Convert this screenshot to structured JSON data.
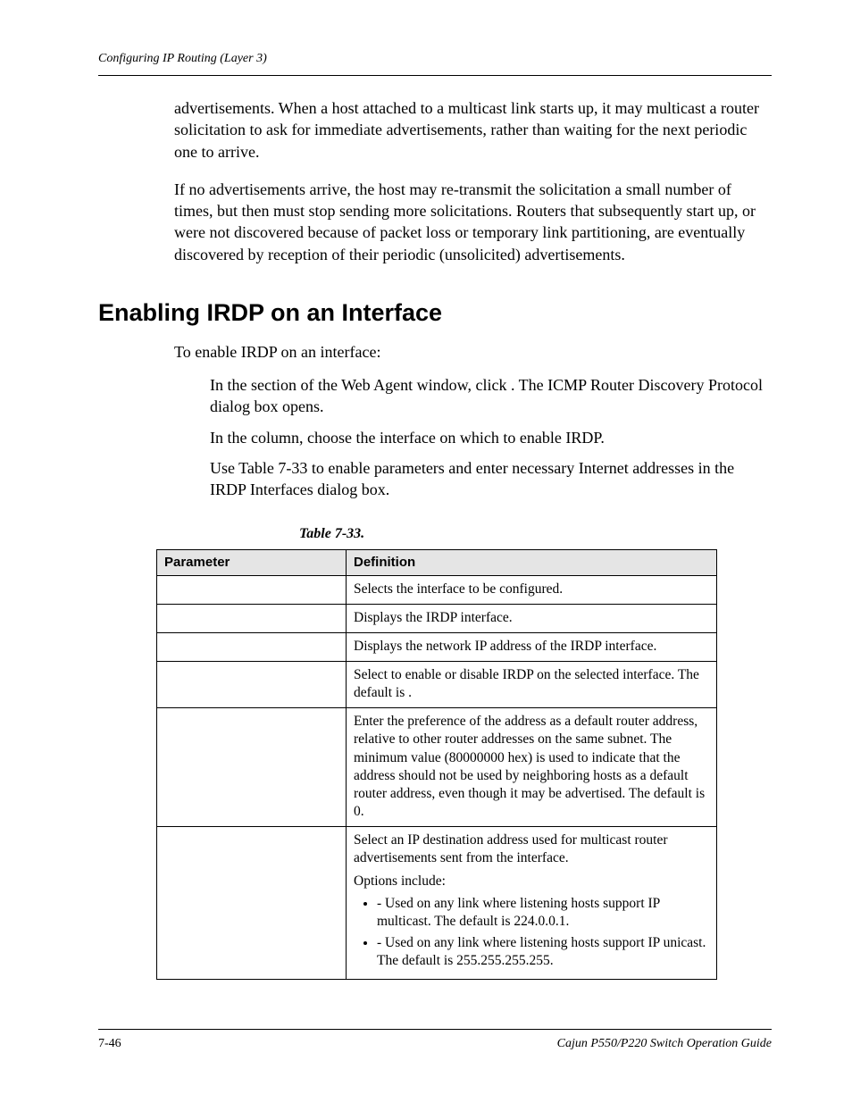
{
  "header": {
    "running_title": "Configuring IP Routing (Layer 3)"
  },
  "body": {
    "para1": "advertisements. When a host attached to a multicast link starts up, it may multicast a router solicitation to ask for immediate advertisements, rather than waiting for the next periodic one to arrive.",
    "para2": "If no advertisements arrive, the host may re-transmit the solicitation a small number of times, but then must stop sending more solicitations. Routers that subsequently start up, or were not discovered because of packet loss or temporary link partitioning, are eventually discovered by reception of their periodic (unsolicited) advertisements."
  },
  "section": {
    "heading": "Enabling IRDP on an Interface",
    "intro": "To enable IRDP on an interface:",
    "step1": "In the                               section of the Web Agent window, click           . The ICMP Router Discovery Protocol dialog box opens.",
    "step2": "In the               column, choose the interface on which to enable IRDP.",
    "post": "Use Table 7-33 to enable parameters and enter necessary Internet addresses in the IRDP Interfaces dialog box."
  },
  "table": {
    "caption": "Table 7-33.",
    "col1": "Parameter",
    "col2": "Definition",
    "rows": {
      "r1_def": "Selects the interface to be configured.",
      "r2_def": "Displays the IRDP interface.",
      "r3_def": "Displays the network IP address of the IRDP interface.",
      "r4_def": "Select to enable or disable IRDP on the selected interface. The default is            .",
      "r5_def": "Enter the preference of the address as a default router address, relative to other router addresses on the same subnet. The minimum value (80000000 hex) is used to indicate that the address should not be used by neighboring hosts as a default router address, even though it may be advertised. The default is 0.",
      "r6_def_a": "Select an IP destination address used for multicast router advertisements sent from the interface.",
      "r6_def_b": "Options include:",
      "r6_opt1": "                    - Used on any link where listening hosts support IP multicast. The default is 224.0.0.1.",
      "r6_opt2": "                    - Used on any link where listening hosts support IP unicast. The default is 255.255.255.255."
    }
  },
  "footer": {
    "left": "7-46",
    "right": "Cajun P550/P220 Switch Operation Guide"
  }
}
